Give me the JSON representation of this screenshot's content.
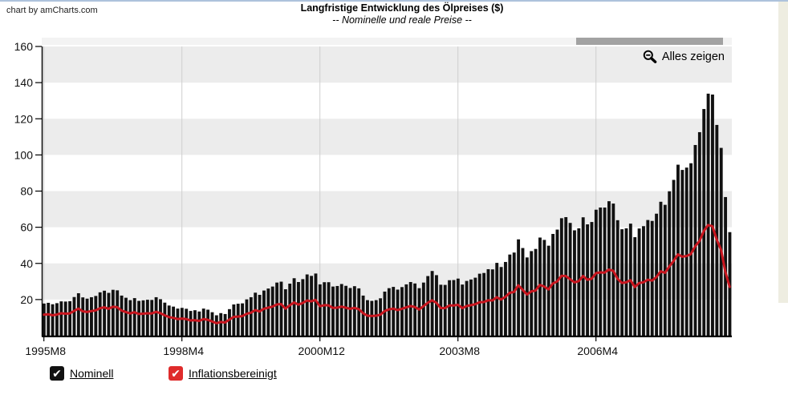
{
  "credit": "chart by amCharts.com",
  "toolbar": {
    "show_all_label": "Alles zeigen"
  },
  "legend": {
    "items": [
      {
        "label": "Nominell",
        "color": "#111111",
        "checked": true
      },
      {
        "label": "Inflationsbereinigt",
        "color": "#df2b2b",
        "checked": true
      }
    ]
  },
  "colors": {
    "bar": "#111111",
    "line": "#c9161f",
    "band": "#ececec",
    "gridline": "#cfcfcf",
    "axis": "#000000",
    "scrollbar_thumb": "#a2a2a2",
    "scrollbar_track": "#f3f3f3",
    "top_border": "#adc2dc",
    "page_strip": "#eeede1",
    "label": "#111111"
  },
  "chart_data": {
    "type": "combo",
    "title": "Langfristige Entwicklung des Ölpreises ($)",
    "subtitle": "-- Nominelle und reale Preise --",
    "x_frequency": "monthly",
    "x_start_label": "1995M8",
    "x_axis": {
      "tick_labels": [
        "1995M8",
        "1998M4",
        "2000M12",
        "2003M8",
        "2006M4"
      ],
      "tick_month_indexes": [
        0,
        32,
        64,
        96,
        128
      ]
    },
    "y_axis": {
      "min": 0,
      "max": 160,
      "ticks": [
        20,
        40,
        60,
        80,
        100,
        120,
        140,
        160
      ]
    },
    "legend_position": "bottom",
    "alternating_bands": true,
    "series": [
      {
        "name": "Nominell",
        "type": "bar",
        "color": "#111111",
        "values": [
          17.8,
          18.2,
          17.4,
          18.0,
          19.0,
          18.9,
          19.1,
          21.4,
          23.5,
          21.2,
          20.5,
          21.3,
          22.0,
          24.0,
          24.9,
          23.7,
          25.4,
          25.1,
          22.2,
          21.0,
          19.7,
          20.8,
          19.3,
          19.6,
          19.9,
          19.8,
          21.3,
          20.2,
          18.3,
          16.7,
          16.1,
          15.0,
          15.4,
          14.9,
          13.7,
          14.1,
          13.4,
          15.0,
          14.4,
          13.0,
          11.3,
          12.5,
          12.0,
          14.7,
          17.3,
          17.7,
          17.9,
          20.1,
          21.3,
          23.8,
          22.6,
          25.0,
          26.1,
          27.2,
          29.4,
          29.9,
          25.7,
          28.8,
          31.8,
          29.7,
          31.3,
          33.9,
          33.1,
          34.4,
          28.4,
          29.6,
          29.6,
          27.2,
          27.5,
          28.6,
          27.6,
          26.4,
          27.4,
          26.2,
          22.2,
          19.7,
          19.3,
          19.7,
          20.7,
          24.4,
          26.3,
          27.0,
          25.5,
          26.9,
          28.4,
          29.7,
          28.9,
          26.3,
          29.4,
          33.0,
          35.8,
          33.5,
          28.2,
          28.1,
          30.7,
          30.8,
          31.6,
          28.3,
          30.3,
          31.1,
          32.1,
          34.3,
          34.7,
          36.8,
          36.7,
          40.3,
          38.0,
          40.8,
          44.9,
          46.0,
          53.3,
          48.5,
          43.3,
          46.8,
          48.0,
          54.3,
          53.0,
          49.8,
          56.3,
          58.7,
          65.0,
          65.6,
          62.4,
          58.3,
          59.4,
          65.5,
          61.6,
          62.9,
          69.7,
          70.9,
          70.9,
          74.4,
          73.1,
          63.9,
          58.9,
          59.4,
          62.0,
          54.5,
          59.3,
          60.6,
          64.0,
          63.5,
          67.5,
          74.1,
          72.4,
          79.9,
          86.2,
          94.6,
          91.7,
          93.0,
          95.4,
          105.5,
          112.6,
          125.4,
          133.9,
          133.4,
          116.6,
          103.9,
          76.7,
          57.3
        ]
      },
      {
        "name": "Inflationsbereinigt",
        "type": "line",
        "color": "#c9161f",
        "values": [
          11.6,
          11.9,
          11.3,
          11.7,
          12.4,
          12.2,
          12.3,
          13.7,
          15.0,
          13.5,
          13.1,
          13.6,
          14.0,
          15.2,
          15.7,
          14.9,
          16.0,
          15.8,
          13.9,
          13.1,
          12.3,
          13.0,
          12.0,
          12.2,
          12.4,
          12.3,
          13.2,
          12.5,
          11.3,
          10.3,
          9.9,
          9.2,
          9.5,
          9.2,
          8.4,
          8.6,
          8.2,
          9.2,
          8.8,
          7.9,
          6.9,
          7.6,
          7.3,
          8.9,
          10.4,
          10.6,
          10.8,
          12.1,
          12.7,
          14.2,
          13.4,
          14.9,
          15.5,
          16.1,
          17.3,
          17.5,
          15.0,
          16.8,
          18.4,
          17.2,
          18.1,
          19.5,
          19.0,
          19.8,
          16.3,
          16.9,
          16.8,
          15.4,
          15.5,
          16.1,
          15.5,
          14.9,
          15.4,
          14.7,
          12.5,
          11.1,
          10.9,
          11.1,
          11.6,
          13.6,
          14.6,
          15.0,
          14.2,
          14.9,
          15.7,
          16.4,
          15.9,
          14.5,
          16.3,
          18.2,
          19.6,
          18.2,
          15.3,
          15.3,
          16.7,
          16.7,
          17.1,
          15.3,
          16.4,
          16.9,
          17.4,
          18.5,
          18.6,
          19.6,
          19.5,
          21.3,
          20.0,
          21.5,
          23.7,
          24.2,
          27.9,
          25.4,
          22.8,
          24.5,
          25.0,
          28.1,
          27.2,
          25.6,
          28.9,
          30.0,
          33.1,
          33.0,
          31.3,
          29.5,
          30.2,
          33.0,
          31.0,
          31.5,
          34.6,
          35.0,
          34.9,
          36.6,
          35.9,
          31.5,
          29.2,
          29.5,
          30.7,
          26.9,
          29.1,
          29.5,
          31.0,
          30.5,
          32.4,
          35.6,
          34.8,
          38.3,
          41.3,
          45.0,
          43.7,
          44.1,
          45.1,
          49.4,
          52.4,
          57.9,
          61.2,
          60.6,
          53.2,
          47.5,
          35.4,
          27.0
        ]
      }
    ]
  }
}
